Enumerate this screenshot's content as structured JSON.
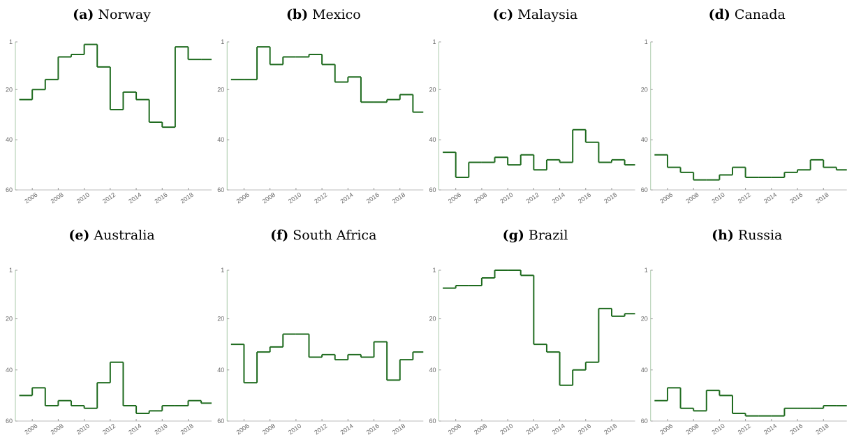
{
  "chart_data": [
    {
      "type": "line",
      "label": "(a)",
      "title": "Norway",
      "x": [
        2005,
        2006,
        2007,
        2008,
        2009,
        2010,
        2011,
        2012,
        2013,
        2014,
        2015,
        2016,
        2017,
        2018,
        2019
      ],
      "values": [
        24,
        20,
        16,
        7,
        6,
        2,
        11,
        28,
        21,
        24,
        33,
        35,
        3,
        8,
        8
      ],
      "color": "#1f6b1f",
      "step": "post",
      "xlim": [
        2004.7,
        2019.8
      ],
      "xticks": [
        2006,
        2008,
        2010,
        2012,
        2014,
        2016,
        2018
      ],
      "ylim": [
        1,
        60
      ],
      "y_inverted": true,
      "yticks": [
        1,
        20,
        40,
        60
      ]
    },
    {
      "type": "line",
      "label": "(b)",
      "title": "Mexico",
      "x": [
        2005,
        2006,
        2007,
        2008,
        2009,
        2010,
        2011,
        2012,
        2013,
        2014,
        2015,
        2016,
        2017,
        2018,
        2019
      ],
      "values": [
        16,
        16,
        3,
        10,
        7,
        7,
        6,
        10,
        17,
        15,
        25,
        25,
        24,
        22,
        29
      ],
      "color": "#1f6b1f",
      "step": "post",
      "xlim": [
        2004.7,
        2019.8
      ],
      "xticks": [
        2006,
        2008,
        2010,
        2012,
        2014,
        2016,
        2018
      ],
      "ylim": [
        1,
        60
      ],
      "y_inverted": true,
      "yticks": [
        1,
        20,
        40,
        60
      ]
    },
    {
      "type": "line",
      "label": "(c)",
      "title": "Malaysia",
      "x": [
        2005,
        2006,
        2007,
        2008,
        2009,
        2010,
        2011,
        2012,
        2013,
        2014,
        2015,
        2016,
        2017,
        2018,
        2019
      ],
      "values": [
        45,
        55,
        49,
        49,
        47,
        50,
        46,
        52,
        48,
        49,
        36,
        41,
        49,
        48,
        50
      ],
      "color": "#1f6b1f",
      "step": "post",
      "xlim": [
        2004.7,
        2019.8
      ],
      "xticks": [
        2006,
        2008,
        2010,
        2012,
        2014,
        2016,
        2018
      ],
      "ylim": [
        1,
        60
      ],
      "y_inverted": true,
      "yticks": [
        1,
        20,
        40,
        60
      ]
    },
    {
      "type": "line",
      "label": "(d)",
      "title": "Canada",
      "x": [
        2005,
        2006,
        2007,
        2008,
        2009,
        2010,
        2011,
        2012,
        2013,
        2014,
        2015,
        2016,
        2017,
        2018,
        2019
      ],
      "values": [
        46,
        51,
        53,
        56,
        56,
        54,
        51,
        55,
        55,
        55,
        53,
        52,
        48,
        51,
        52
      ],
      "color": "#1f6b1f",
      "step": "post",
      "xlim": [
        2004.7,
        2019.8
      ],
      "xticks": [
        2006,
        2008,
        2010,
        2012,
        2014,
        2016,
        2018
      ],
      "ylim": [
        1,
        60
      ],
      "y_inverted": true,
      "yticks": [
        1,
        20,
        40,
        60
      ]
    },
    {
      "type": "line",
      "label": "(e)",
      "title": "Australia",
      "x": [
        2005,
        2006,
        2007,
        2008,
        2009,
        2010,
        2011,
        2012,
        2013,
        2014,
        2015,
        2016,
        2017,
        2018,
        2019
      ],
      "values": [
        50,
        47,
        54,
        52,
        54,
        55,
        45,
        37,
        54,
        57,
        56,
        54,
        54,
        52,
        53
      ],
      "color": "#1f6b1f",
      "step": "post",
      "xlim": [
        2004.7,
        2019.8
      ],
      "xticks": [
        2006,
        2008,
        2010,
        2012,
        2014,
        2016,
        2018
      ],
      "ylim": [
        1,
        60
      ],
      "y_inverted": true,
      "yticks": [
        1,
        20,
        40,
        60
      ]
    },
    {
      "type": "line",
      "label": "(f)",
      "title": "South Africa",
      "x": [
        2005,
        2006,
        2007,
        2008,
        2009,
        2010,
        2011,
        2012,
        2013,
        2014,
        2015,
        2016,
        2017,
        2018,
        2019
      ],
      "values": [
        30,
        45,
        33,
        31,
        26,
        26,
        35,
        34,
        36,
        34,
        35,
        29,
        44,
        36,
        33
      ],
      "color": "#1f6b1f",
      "step": "post",
      "xlim": [
        2004.7,
        2019.8
      ],
      "xticks": [
        2006,
        2008,
        2010,
        2012,
        2014,
        2016,
        2018
      ],
      "ylim": [
        1,
        60
      ],
      "y_inverted": true,
      "yticks": [
        1,
        20,
        40,
        60
      ]
    },
    {
      "type": "line",
      "label": "(g)",
      "title": "Brazil",
      "x": [
        2005,
        2006,
        2007,
        2008,
        2009,
        2010,
        2011,
        2012,
        2013,
        2014,
        2015,
        2016,
        2017,
        2018,
        2019
      ],
      "values": [
        8,
        7,
        7,
        4,
        1,
        1,
        3,
        30,
        33,
        46,
        40,
        37,
        16,
        19,
        18
      ],
      "color": "#1f6b1f",
      "step": "post",
      "xlim": [
        2004.7,
        2019.8
      ],
      "xticks": [
        2006,
        2008,
        2010,
        2012,
        2014,
        2016,
        2018
      ],
      "ylim": [
        1,
        60
      ],
      "y_inverted": true,
      "yticks": [
        1,
        20,
        40,
        60
      ]
    },
    {
      "type": "line",
      "label": "(h)",
      "title": "Russia",
      "x": [
        2005,
        2006,
        2007,
        2008,
        2009,
        2010,
        2011,
        2012,
        2013,
        2014,
        2015,
        2016,
        2017,
        2018,
        2019
      ],
      "values": [
        52,
        47,
        55,
        56,
        48,
        50,
        57,
        58,
        58,
        58,
        55,
        55,
        55,
        54,
        54
      ],
      "color": "#1f6b1f",
      "step": "post",
      "xlim": [
        2004.7,
        2019.8
      ],
      "xticks": [
        2006,
        2008,
        2010,
        2012,
        2014,
        2016,
        2018
      ],
      "ylim": [
        1,
        60
      ],
      "y_inverted": true,
      "yticks": [
        1,
        20,
        40,
        60
      ]
    }
  ]
}
